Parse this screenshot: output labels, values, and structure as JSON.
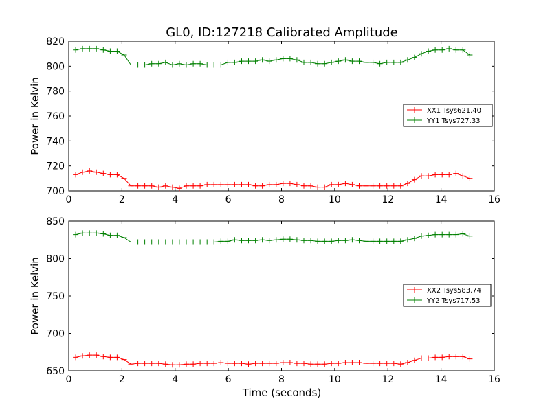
{
  "figure_title": "GL0, ID:127218 Calibrated Amplitude",
  "x_label": "Time (seconds)",
  "chart_data": [
    {
      "type": "line",
      "title": "GL0, ID:127218 Calibrated Amplitude",
      "xlabel": "",
      "ylabel": "Power in Kelvin",
      "xlim": [
        0,
        16
      ],
      "ylim": [
        700,
        820
      ],
      "xticks": [
        0,
        2,
        4,
        6,
        8,
        10,
        12,
        14,
        16
      ],
      "yticks": [
        700,
        720,
        740,
        760,
        780,
        800,
        820
      ],
      "grid": false,
      "legend_position": "right",
      "x": [
        0.26,
        0.52,
        0.78,
        1.04,
        1.3,
        1.56,
        1.82,
        2.08,
        2.34,
        2.6,
        2.86,
        3.12,
        3.38,
        3.64,
        3.9,
        4.16,
        4.42,
        4.68,
        4.94,
        5.2,
        5.46,
        5.72,
        5.98,
        6.24,
        6.5,
        6.76,
        7.02,
        7.28,
        7.54,
        7.8,
        8.06,
        8.32,
        8.58,
        8.84,
        9.1,
        9.36,
        9.62,
        9.88,
        10.14,
        10.4,
        10.66,
        10.92,
        11.18,
        11.44,
        11.7,
        11.96,
        12.22,
        12.48,
        12.74,
        13.0,
        13.26,
        13.52,
        13.78,
        14.04,
        14.3,
        14.56,
        14.82,
        15.08
      ],
      "series": [
        {
          "name": "XX1 Tsys621.40",
          "color": "#ff0000",
          "values": [
            713,
            715,
            716,
            715,
            714,
            713,
            713,
            710,
            704,
            704,
            704,
            704,
            703,
            704,
            703,
            702,
            704,
            704,
            704,
            705,
            705,
            705,
            705,
            705,
            705,
            705,
            704,
            704,
            705,
            705,
            706,
            706,
            705,
            704,
            704,
            703,
            703,
            705,
            705,
            706,
            705,
            704,
            704,
            704,
            704,
            704,
            704,
            704,
            706,
            709,
            712,
            712,
            713,
            713,
            713,
            714,
            712,
            710
          ]
        },
        {
          "name": "YY1 Tsys727.33",
          "color": "#008000",
          "values": [
            813,
            814,
            814,
            814,
            813,
            812,
            812,
            809,
            801,
            801,
            801,
            802,
            802,
            803,
            801,
            802,
            801,
            802,
            802,
            801,
            801,
            801,
            803,
            803,
            804,
            804,
            804,
            805,
            804,
            805,
            806,
            806,
            805,
            803,
            803,
            802,
            802,
            803,
            804,
            805,
            804,
            804,
            803,
            803,
            802,
            803,
            803,
            803,
            805,
            807,
            810,
            812,
            813,
            813,
            814,
            813,
            813,
            809
          ]
        }
      ]
    },
    {
      "type": "line",
      "title": "",
      "xlabel": "Time (seconds)",
      "ylabel": "Power in Kelvin",
      "xlim": [
        0,
        16
      ],
      "ylim": [
        650,
        850
      ],
      "xticks": [
        0,
        2,
        4,
        6,
        8,
        10,
        12,
        14,
        16
      ],
      "yticks": [
        650,
        700,
        750,
        800,
        850
      ],
      "grid": false,
      "legend_position": "right",
      "x": [
        0.26,
        0.52,
        0.78,
        1.04,
        1.3,
        1.56,
        1.82,
        2.08,
        2.34,
        2.6,
        2.86,
        3.12,
        3.38,
        3.64,
        3.9,
        4.16,
        4.42,
        4.68,
        4.94,
        5.2,
        5.46,
        5.72,
        5.98,
        6.24,
        6.5,
        6.76,
        7.02,
        7.28,
        7.54,
        7.8,
        8.06,
        8.32,
        8.58,
        8.84,
        9.1,
        9.36,
        9.62,
        9.88,
        10.14,
        10.4,
        10.66,
        10.92,
        11.18,
        11.44,
        11.7,
        11.96,
        12.22,
        12.48,
        12.74,
        13.0,
        13.26,
        13.52,
        13.78,
        14.04,
        14.3,
        14.56,
        14.82,
        15.08
      ],
      "series": [
        {
          "name": "XX2 Tsys583.74",
          "color": "#ff0000",
          "values": [
            668,
            670,
            671,
            671,
            669,
            668,
            668,
            665,
            659,
            660,
            660,
            660,
            660,
            659,
            658,
            658,
            659,
            659,
            660,
            660,
            660,
            661,
            660,
            660,
            660,
            659,
            660,
            660,
            660,
            660,
            661,
            661,
            660,
            660,
            659,
            659,
            659,
            660,
            660,
            661,
            661,
            661,
            660,
            660,
            660,
            660,
            660,
            659,
            661,
            664,
            667,
            667,
            668,
            668,
            669,
            669,
            669,
            666
          ]
        },
        {
          "name": "YY2 Tsys717.53",
          "color": "#008000",
          "values": [
            832,
            834,
            834,
            834,
            833,
            831,
            831,
            828,
            822,
            822,
            822,
            822,
            822,
            822,
            822,
            822,
            822,
            822,
            822,
            822,
            822,
            823,
            823,
            825,
            824,
            824,
            824,
            825,
            824,
            825,
            826,
            826,
            825,
            824,
            824,
            823,
            823,
            823,
            824,
            824,
            825,
            824,
            823,
            823,
            823,
            823,
            823,
            823,
            825,
            827,
            830,
            831,
            832,
            832,
            832,
            832,
            833,
            830
          ]
        }
      ]
    }
  ]
}
